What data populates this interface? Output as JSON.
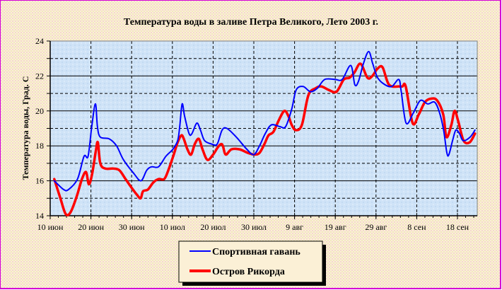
{
  "chart_data": {
    "type": "line",
    "title": "Температура воды в заливе Петра Великого,   Лето 2003 г.",
    "xlabel": "",
    "ylabel": "Температура воды, Град. С",
    "ylim": [
      14,
      24
    ],
    "yticks": [
      14,
      16,
      18,
      20,
      22,
      24
    ],
    "y_minor_step": 1,
    "x_tick_labels": [
      "10 июн",
      "20 июн",
      "30 июн",
      "10 июл",
      "20 июл",
      "30 июл",
      "9 авг",
      "19 авг",
      "29 авг",
      "8 сен",
      "18 сен"
    ],
    "x_tick_days": [
      0,
      10,
      20,
      30,
      40,
      50,
      60,
      70,
      80,
      90,
      100
    ],
    "xlim_days": [
      0,
      105
    ],
    "x_unit": "days since 10 июн 2003",
    "grid": {
      "horizontal_major": "solid",
      "horizontal_minor": "dashed",
      "vertical": "dashed"
    },
    "legend_position": "bottom",
    "series": [
      {
        "name": "Спортивная гавань",
        "color": "#0000ff",
        "x": [
          1,
          3.3,
          4.5,
          6.7,
          8.3,
          9.3,
          10.2,
          11.1,
          11.6,
          12.3,
          14.5,
          16.3,
          18,
          20.6,
          22.3,
          23.7,
          24.9,
          26.6,
          28.4,
          30.1,
          31.3,
          31.8,
          32.4,
          33.0,
          34.1,
          34.8,
          36,
          36.9,
          37.9,
          39.7,
          41,
          42.2,
          43.4,
          45.7,
          48.3,
          50,
          51.4,
          52.8,
          54.3,
          56.4,
          57.8,
          59.3,
          60.4,
          62.1,
          63.9,
          65.6,
          67.4,
          70,
          71.7,
          73.8,
          74.8,
          75.7,
          76.9,
          78.2,
          79.2,
          80.4,
          82.2,
          83.9,
          85.6,
          86.2,
          87.4,
          89.2,
          90.9,
          92.7,
          94.4,
          95.6,
          96.6,
          97.4,
          97.9,
          98.8,
          99.6,
          100.5,
          101.4,
          103.1,
          104.3
        ],
        "values": [
          16.0,
          15.5,
          15.5,
          16.1,
          17.4,
          17.4,
          19.1,
          20.4,
          19.1,
          18.5,
          18.4,
          18.0,
          17.2,
          16.4,
          16.0,
          16.6,
          16.8,
          16.8,
          17.4,
          17.8,
          18.3,
          19.1,
          20.4,
          19.7,
          18.7,
          18.7,
          19.3,
          18.9,
          18.3,
          18.1,
          18.1,
          18.9,
          19.0,
          18.5,
          17.8,
          17.5,
          18.0,
          18.7,
          19.2,
          19.1,
          19.1,
          20.1,
          21.2,
          21.4,
          21.1,
          21.3,
          21.8,
          21.8,
          21.8,
          22.6,
          21.5,
          21.7,
          22.7,
          23.4,
          22.7,
          21.9,
          21.5,
          21.4,
          21.8,
          21.1,
          19.3,
          19.9,
          20.6,
          20.4,
          20.5,
          19.9,
          18.9,
          17.6,
          17.5,
          18.3,
          18.9,
          18.7,
          18.3,
          18.5,
          18.9
        ]
      },
      {
        "name": "Остров Рикорда",
        "color": "#ff0000",
        "x": [
          1,
          2.5,
          3.8,
          5,
          6.5,
          7.8,
          8.8,
          9.5,
          10.3,
          11.2,
          11.7,
          12.3,
          13.5,
          15.5,
          17,
          18.5,
          20,
          21.3,
          22.2,
          22.8,
          24,
          25.3,
          26.6,
          28,
          29,
          30.2,
          31.3,
          32.2,
          32.8,
          33.7,
          34.6,
          35.5,
          36.5,
          37.4,
          38.6,
          40,
          41.1,
          41.9,
          42.4,
          43.1,
          44.5,
          46.5,
          48.5,
          50.2,
          51.4,
          52.6,
          53.6,
          54.8,
          56.2,
          57.5,
          58.5,
          59.3,
          60.3,
          61.8,
          63.4,
          65.2,
          66.6,
          68.4,
          70.3,
          72.1,
          73.5,
          74.7,
          76.2,
          77.9,
          79.1,
          80.3,
          81.6,
          83.2,
          85.7,
          86.5,
          87.3,
          89.0,
          90.5,
          92.0,
          93.5,
          95.0,
          96.5,
          97.3,
          98.5,
          99.3,
          100.2,
          101.5,
          103.0,
          104.3
        ],
        "values": [
          16.1,
          15.0,
          14.1,
          14.2,
          15.1,
          16.1,
          16.5,
          15.8,
          16.4,
          17.7,
          18.2,
          17.0,
          16.7,
          16.7,
          16.6,
          16.1,
          15.6,
          15.2,
          15.0,
          15.4,
          15.5,
          15.9,
          16.1,
          16.1,
          16.6,
          17.4,
          18.2,
          18.6,
          18.4,
          17.8,
          17.5,
          18.1,
          18.4,
          17.8,
          17.2,
          17.5,
          17.9,
          18.1,
          18.0,
          17.5,
          17.8,
          17.8,
          17.6,
          17.5,
          17.6,
          18.1,
          18.6,
          18.8,
          19.5,
          20.0,
          19.7,
          19.2,
          18.9,
          19.2,
          20.9,
          21.3,
          21.4,
          21.2,
          21.1,
          21.8,
          21.9,
          22.2,
          22.7,
          21.9,
          22.0,
          22.4,
          22.5,
          21.5,
          21.4,
          21.4,
          21.4,
          19.3,
          19.8,
          20.5,
          20.7,
          20.6,
          19.8,
          18.5,
          19.2,
          20.0,
          19.4,
          18.3,
          18.2,
          18.7
        ]
      }
    ]
  },
  "legend": {
    "items": [
      {
        "label": "Спортивная гавань",
        "color": "#0000ff"
      },
      {
        "label": "Остров Рикорда",
        "color": "#ff0000"
      }
    ]
  }
}
